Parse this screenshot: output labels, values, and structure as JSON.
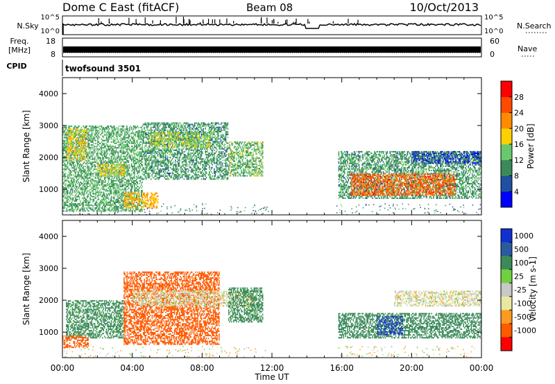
{
  "header": {
    "station": "Dome C East (fitACF)",
    "beam": "Beam 08",
    "date": "10/Oct/2013"
  },
  "strips": {
    "nsky_label": "N.Sky",
    "nsky_top": "10^5",
    "nsky_bottom": "10^0",
    "nsearch_label": "N.Search",
    "freq_label": "Freq.",
    "freq_unit": "[MHz]",
    "freq_ticks": [
      "18",
      "8"
    ],
    "nave_label": "Nave",
    "nave_ticks": [
      "60",
      "0"
    ],
    "cpid_label": "CPID",
    "cpid_value": "twofsound 3501"
  },
  "colors": {
    "power": [
      "#0000ff",
      "#2050a0",
      "#3a8a5a",
      "#69c86e",
      "#ffd000",
      "#ff8c00",
      "#ff4a00",
      "#ff0000"
    ],
    "velocity": [
      "#ff0000",
      "#ff5a00",
      "#ff9a20",
      "#e8e8a0",
      "#c8c8c8",
      "#70d040",
      "#3a8a5a",
      "#2a5aa0",
      "#1030d0"
    ]
  },
  "chart_data": [
    {
      "type": "heatmap",
      "name": "power",
      "title": "",
      "xlabel": "",
      "ylabel": "Slant Range [km]",
      "x_ticks": [
        "00:00",
        "04:00",
        "08:00",
        "12:00",
        "16:00",
        "20:00",
        "00:00"
      ],
      "x_range_hours": [
        0,
        24
      ],
      "y_ticks": [
        1000,
        2000,
        3000,
        4000
      ],
      "ylim": [
        200,
        4500
      ],
      "colorbar": {
        "label": "Power [dB]",
        "ticks": [
          4,
          8,
          12,
          16,
          20,
          24,
          28
        ],
        "range": [
          0,
          32
        ]
      },
      "regions": [
        {
          "t0": 0.0,
          "t1": 4.6,
          "r0": 300,
          "r1": 3000,
          "level": 12
        },
        {
          "t0": 0.2,
          "t1": 1.4,
          "r0": 1900,
          "r1": 2900,
          "level": 18
        },
        {
          "t0": 2.0,
          "t1": 3.6,
          "r0": 1400,
          "r1": 1800,
          "level": 17
        },
        {
          "t0": 3.5,
          "t1": 5.5,
          "r0": 400,
          "r1": 900,
          "level": 20
        },
        {
          "t0": 4.6,
          "t1": 9.5,
          "r0": 1300,
          "r1": 3100,
          "level": 11
        },
        {
          "t0": 5.0,
          "t1": 8.5,
          "r0": 2300,
          "r1": 2800,
          "level": 15
        },
        {
          "t0": 9.5,
          "t1": 11.5,
          "r0": 1400,
          "r1": 2500,
          "level": 13
        },
        {
          "t0": 15.8,
          "t1": 24.0,
          "r0": 700,
          "r1": 2200,
          "level": 11
        },
        {
          "t0": 16.5,
          "t1": 22.5,
          "r0": 800,
          "r1": 1500,
          "level": 25
        },
        {
          "t0": 20.0,
          "t1": 24.0,
          "r0": 1800,
          "r1": 2200,
          "level": 6
        }
      ]
    },
    {
      "type": "heatmap",
      "name": "velocity",
      "title": "",
      "xlabel": "Time UT",
      "ylabel": "Slant Range [km]",
      "x_ticks": [
        "00:00",
        "04:00",
        "08:00",
        "12:00",
        "16:00",
        "20:00",
        "00:00"
      ],
      "x_range_hours": [
        0,
        24
      ],
      "y_ticks": [
        1000,
        2000,
        3000,
        4000
      ],
      "ylim": [
        200,
        4500
      ],
      "colorbar": {
        "label": "Velocity [m s-1]",
        "ticks": [
          "1000",
          "500",
          "100",
          "25",
          "-25",
          "-100",
          "-500",
          "-1000"
        ]
      },
      "regions": [
        {
          "t0": 0.2,
          "t1": 3.5,
          "r0": 800,
          "r1": 2000,
          "level": 150
        },
        {
          "t0": 0.0,
          "t1": 1.5,
          "r0": 500,
          "r1": 900,
          "level": -250
        },
        {
          "t0": 3.5,
          "t1": 9.0,
          "r0": 600,
          "r1": 2900,
          "level": -300
        },
        {
          "t0": 4.0,
          "t1": 11.0,
          "r0": 1800,
          "r1": 2300,
          "level": 0
        },
        {
          "t0": 9.5,
          "t1": 11.5,
          "r0": 1300,
          "r1": 2400,
          "level": 150
        },
        {
          "t0": 15.8,
          "t1": 24.0,
          "r0": 800,
          "r1": 1600,
          "level": 200
        },
        {
          "t0": 18.0,
          "t1": 19.5,
          "r0": 900,
          "r1": 1500,
          "level": 900
        },
        {
          "t0": 19.0,
          "t1": 24.0,
          "r0": 1800,
          "r1": 2300,
          "level": 0
        }
      ]
    }
  ]
}
